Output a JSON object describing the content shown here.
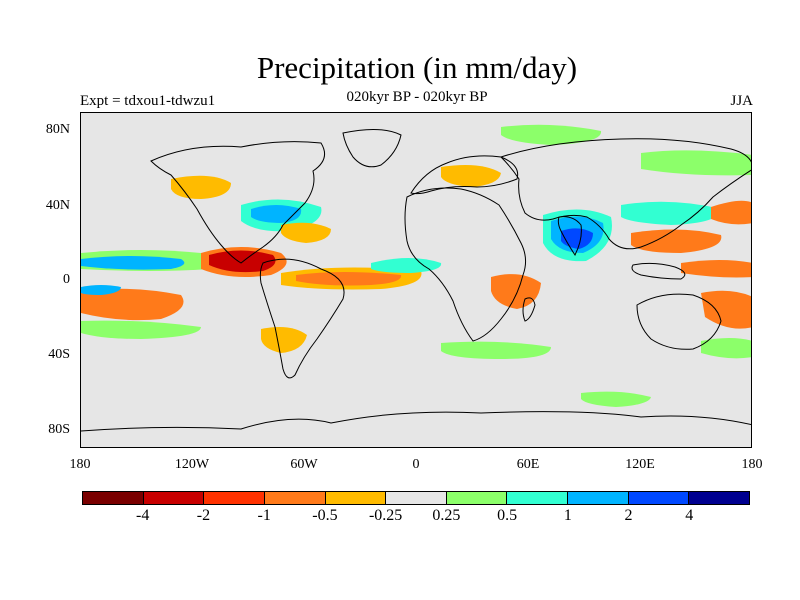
{
  "title": "Precipitation (in mm/day)",
  "subtitle": "020kyr BP - 020kyr BP",
  "experiment": "Expt = tdxou1-tdwzu1",
  "season": "JJA",
  "y_axis_labels": [
    "80N",
    "40N",
    "0",
    "40S",
    "80S"
  ],
  "x_axis_labels": [
    "180",
    "120W",
    "60W",
    "0",
    "60E",
    "120E",
    "180"
  ],
  "colorbar": {
    "colors": [
      "#7a0000",
      "#c80000",
      "#ff3200",
      "#ff7a1a",
      "#ffbb00",
      "#e6e6e6",
      "#8cff6a",
      "#32ffd2",
      "#00b4ff",
      "#0048ff",
      "#000090"
    ],
    "labels": [
      "-4",
      "-2",
      "-1",
      "-0.5",
      "-0.25",
      "0.25",
      "0.5",
      "1",
      "2",
      "4"
    ]
  }
}
